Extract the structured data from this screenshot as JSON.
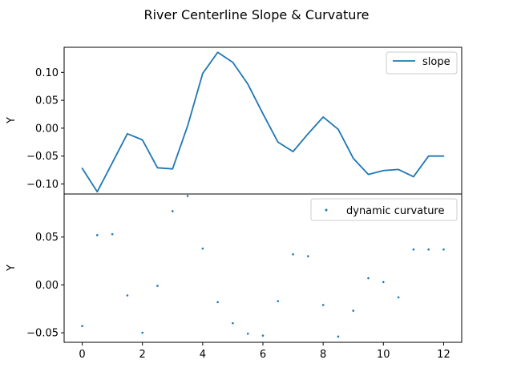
{
  "figure": {
    "title": "River Centerline Slope & Curvature"
  },
  "chart_data": [
    {
      "type": "line",
      "title": "",
      "xlabel": "",
      "ylabel": "Y",
      "color": "#1f77b4",
      "series": [
        {
          "name": "slope",
          "x": [
            0,
            0.5,
            1,
            1.5,
            2,
            2.5,
            3,
            3.5,
            4,
            4.5,
            5,
            5.5,
            6,
            6.5,
            7,
            7.5,
            8,
            8.5,
            9,
            9.5,
            10,
            10.5,
            11,
            11.5,
            12
          ],
          "y": [
            -0.072,
            -0.114,
            -0.062,
            -0.01,
            -0.021,
            -0.071,
            -0.073,
            0.004,
            0.098,
            0.136,
            0.118,
            0.079,
            0.026,
            -0.025,
            -0.042,
            -0.01,
            0.02,
            -0.002,
            -0.054,
            -0.083,
            -0.076,
            -0.074,
            -0.087,
            -0.05,
            -0.05
          ]
        }
      ],
      "xlim": [
        -0.6,
        12.6
      ],
      "ylim": [
        -0.118,
        0.145
      ],
      "yticks": [
        -0.1,
        -0.05,
        0.0,
        0.05,
        0.1
      ],
      "ytick_labels": [
        "−0.10",
        "−0.05",
        "0.00",
        "0.05",
        "0.10"
      ],
      "grid": false,
      "legend": "top-right"
    },
    {
      "type": "scatter",
      "title": "",
      "xlabel": "",
      "ylabel": "Y",
      "color": "#1f77b4",
      "series": [
        {
          "name": "dynamic curvature",
          "x": [
            0,
            0.5,
            1,
            1.5,
            2,
            2.5,
            3,
            3.5,
            4,
            4.5,
            5,
            5.5,
            6,
            6.5,
            7,
            7.5,
            8,
            8.5,
            9,
            9.5,
            10,
            10.5,
            11,
            11.5,
            12
          ],
          "y": [
            -0.043,
            0.052,
            0.053,
            -0.011,
            -0.05,
            -0.001,
            0.077,
            0.093,
            0.038,
            -0.018,
            -0.04,
            -0.051,
            -0.053,
            -0.017,
            0.032,
            0.03,
            -0.021,
            -0.054,
            -0.027,
            0.007,
            0.003,
            -0.013,
            0.037,
            0.037,
            0.037
          ]
        }
      ],
      "xlim": [
        -0.6,
        12.6
      ],
      "ylim": [
        -0.06,
        0.095
      ],
      "xticks": [
        0,
        2,
        4,
        6,
        8,
        10,
        12
      ],
      "xtick_labels": [
        "0",
        "2",
        "4",
        "6",
        "8",
        "10",
        "12"
      ],
      "yticks": [
        -0.05,
        0.0,
        0.05
      ],
      "ytick_labels": [
        "−0.05",
        "0.00",
        "0.05"
      ],
      "grid": false,
      "legend": "top-right"
    }
  ]
}
